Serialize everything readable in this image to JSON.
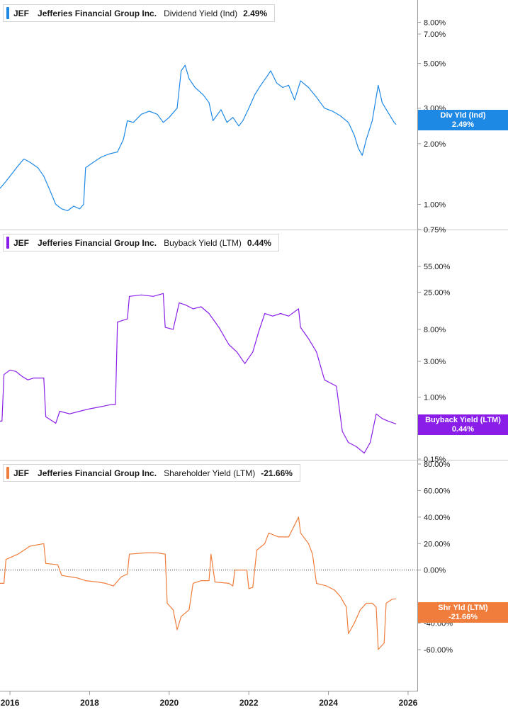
{
  "colors": {
    "dividend": "#1e88e5",
    "buyback": "#8a1ee8",
    "shareholder": "#f07d3c"
  },
  "legends": [
    {
      "ticker": "JEF",
      "company": "Jefferies Financial Group Inc.",
      "metric": "Dividend Yield (Ind)",
      "value": "2.49%"
    },
    {
      "ticker": "JEF",
      "company": "Jefferies Financial Group Inc.",
      "metric": "Buyback Yield (LTM)",
      "value": "0.44%"
    },
    {
      "ticker": "JEF",
      "company": "Jefferies Financial Group Inc.",
      "metric": "Shareholder Yield (LTM)",
      "value": "-21.66%"
    }
  ],
  "flags": [
    {
      "label": "Div Yld (Ind)",
      "value": "2.49%"
    },
    {
      "label": "Buyback Yield (LTM)",
      "value": "0.44%"
    },
    {
      "label": "Shr Yld (LTM)",
      "value": "-21.66%"
    }
  ],
  "chart_data": [
    {
      "type": "line",
      "series": [
        {
          "name": "Dividend Yield (Ind)",
          "color": "#1e88e5"
        }
      ],
      "yscale": "log",
      "ylim": [
        0.75,
        9
      ],
      "yticks": [
        "8.00%",
        "7.00%",
        "5.00%",
        "3.00%",
        "2.00%",
        "1.00%",
        "0.75%"
      ],
      "xlim": [
        2015.75,
        2026.25
      ],
      "points": [
        [
          2015.75,
          1.2
        ],
        [
          2015.9,
          1.3
        ],
        [
          2016.05,
          1.42
        ],
        [
          2016.2,
          1.55
        ],
        [
          2016.35,
          1.68
        ],
        [
          2016.5,
          1.62
        ],
        [
          2016.7,
          1.52
        ],
        [
          2016.85,
          1.38
        ],
        [
          2017.0,
          1.18
        ],
        [
          2017.15,
          1.0
        ],
        [
          2017.3,
          0.95
        ],
        [
          2017.45,
          0.93
        ],
        [
          2017.6,
          0.98
        ],
        [
          2017.75,
          0.95
        ],
        [
          2017.85,
          1.0
        ],
        [
          2017.9,
          1.52
        ],
        [
          2018.1,
          1.62
        ],
        [
          2018.3,
          1.72
        ],
        [
          2018.5,
          1.78
        ],
        [
          2018.7,
          1.82
        ],
        [
          2018.85,
          2.1
        ],
        [
          2018.95,
          2.6
        ],
        [
          2019.1,
          2.55
        ],
        [
          2019.3,
          2.8
        ],
        [
          2019.5,
          2.9
        ],
        [
          2019.7,
          2.8
        ],
        [
          2019.85,
          2.55
        ],
        [
          2020.0,
          2.7
        ],
        [
          2020.2,
          3.0
        ],
        [
          2020.3,
          4.6
        ],
        [
          2020.4,
          4.9
        ],
        [
          2020.5,
          4.2
        ],
        [
          2020.65,
          3.8
        ],
        [
          2020.85,
          3.5
        ],
        [
          2021.0,
          3.2
        ],
        [
          2021.1,
          2.6
        ],
        [
          2021.3,
          2.95
        ],
        [
          2021.45,
          2.55
        ],
        [
          2021.6,
          2.7
        ],
        [
          2021.75,
          2.45
        ],
        [
          2021.85,
          2.6
        ],
        [
          2022.0,
          3.0
        ],
        [
          2022.15,
          3.5
        ],
        [
          2022.3,
          3.9
        ],
        [
          2022.45,
          4.3
        ],
        [
          2022.55,
          4.6
        ],
        [
          2022.7,
          4.0
        ],
        [
          2022.85,
          3.8
        ],
        [
          2023.0,
          3.9
        ],
        [
          2023.15,
          3.3
        ],
        [
          2023.3,
          4.1
        ],
        [
          2023.5,
          3.8
        ],
        [
          2023.7,
          3.4
        ],
        [
          2023.9,
          3.0
        ],
        [
          2024.1,
          2.9
        ],
        [
          2024.3,
          2.75
        ],
        [
          2024.5,
          2.55
        ],
        [
          2024.65,
          2.2
        ],
        [
          2024.75,
          1.9
        ],
        [
          2024.85,
          1.75
        ],
        [
          2024.95,
          2.1
        ],
        [
          2025.1,
          2.6
        ],
        [
          2025.25,
          3.9
        ],
        [
          2025.35,
          3.2
        ],
        [
          2025.5,
          2.85
        ],
        [
          2025.65,
          2.55
        ],
        [
          2025.7,
          2.49
        ]
      ]
    },
    {
      "type": "line",
      "series": [
        {
          "name": "Buyback Yield (LTM)",
          "color": "#8a1ee8"
        }
      ],
      "yscale": "log",
      "ylim": [
        0.15,
        70
      ],
      "yticks": [
        "55.00%",
        "25.00%",
        "8.00%",
        "3.00%",
        "1.00%",
        "0.15%"
      ],
      "xlim": [
        2015.75,
        2026.25
      ],
      "points": [
        [
          2015.75,
          0.48
        ],
        [
          2015.8,
          0.48
        ],
        [
          2015.85,
          2.0
        ],
        [
          2016.0,
          2.3
        ],
        [
          2016.15,
          2.2
        ],
        [
          2016.3,
          1.9
        ],
        [
          2016.45,
          1.7
        ],
        [
          2016.6,
          1.8
        ],
        [
          2016.85,
          1.8
        ],
        [
          2016.9,
          0.55
        ],
        [
          2017.15,
          0.45
        ],
        [
          2017.25,
          0.65
        ],
        [
          2017.5,
          0.6
        ],
        [
          2017.75,
          0.65
        ],
        [
          2018.0,
          0.7
        ],
        [
          2018.3,
          0.75
        ],
        [
          2018.55,
          0.8
        ],
        [
          2018.65,
          0.8
        ],
        [
          2018.7,
          10.0
        ],
        [
          2018.95,
          11.0
        ],
        [
          2019.0,
          22.0
        ],
        [
          2019.3,
          23.0
        ],
        [
          2019.6,
          22.0
        ],
        [
          2019.85,
          24.0
        ],
        [
          2019.9,
          8.5
        ],
        [
          2020.1,
          8.0
        ],
        [
          2020.25,
          18.0
        ],
        [
          2020.4,
          17.0
        ],
        [
          2020.6,
          15.0
        ],
        [
          2020.8,
          16.0
        ],
        [
          2021.0,
          13.0
        ],
        [
          2021.25,
          8.5
        ],
        [
          2021.5,
          5.0
        ],
        [
          2021.7,
          4.0
        ],
        [
          2021.9,
          2.8
        ],
        [
          2022.1,
          4.0
        ],
        [
          2022.25,
          7.5
        ],
        [
          2022.4,
          13.0
        ],
        [
          2022.6,
          12.0
        ],
        [
          2022.8,
          13.0
        ],
        [
          2023.0,
          12.0
        ],
        [
          2023.25,
          15.0
        ],
        [
          2023.3,
          8.5
        ],
        [
          2023.5,
          6.0
        ],
        [
          2023.7,
          4.0
        ],
        [
          2023.9,
          1.7
        ],
        [
          2024.2,
          1.4
        ],
        [
          2024.35,
          0.35
        ],
        [
          2024.5,
          0.25
        ],
        [
          2024.7,
          0.22
        ],
        [
          2024.9,
          0.18
        ],
        [
          2025.05,
          0.25
        ],
        [
          2025.2,
          0.6
        ],
        [
          2025.35,
          0.52
        ],
        [
          2025.5,
          0.48
        ],
        [
          2025.7,
          0.44
        ]
      ]
    },
    {
      "type": "line",
      "series": [
        {
          "name": "Shareholder Yield (LTM)",
          "color": "#f07d3c"
        }
      ],
      "yscale": "linear",
      "ylim": [
        -75,
        80
      ],
      "yticks": [
        "80.00%",
        "60.00%",
        "40.00%",
        "20.00%",
        "0.00%",
        "-40.00%",
        "-60.00%"
      ],
      "zero_line": "dotted",
      "xlim": [
        2015.75,
        2026.25
      ],
      "xticks": [
        "2016",
        "2018",
        "2020",
        "2022",
        "2024",
        "2026"
      ],
      "points": [
        [
          2015.75,
          -10
        ],
        [
          2015.85,
          -10
        ],
        [
          2015.9,
          8
        ],
        [
          2016.2,
          12
        ],
        [
          2016.5,
          18
        ],
        [
          2016.85,
          20
        ],
        [
          2016.9,
          5
        ],
        [
          2017.2,
          4
        ],
        [
          2017.3,
          -4
        ],
        [
          2017.7,
          -6
        ],
        [
          2017.9,
          -8
        ],
        [
          2018.2,
          -9
        ],
        [
          2018.4,
          -10
        ],
        [
          2018.6,
          -12
        ],
        [
          2018.8,
          -5
        ],
        [
          2018.95,
          -3
        ],
        [
          2019.0,
          12
        ],
        [
          2019.4,
          13
        ],
        [
          2019.7,
          13
        ],
        [
          2019.9,
          12
        ],
        [
          2019.95,
          -25
        ],
        [
          2020.1,
          -30
        ],
        [
          2020.2,
          -45
        ],
        [
          2020.3,
          -35
        ],
        [
          2020.5,
          -30
        ],
        [
          2020.6,
          -10
        ],
        [
          2020.8,
          -8
        ],
        [
          2021.0,
          -8
        ],
        [
          2021.05,
          12
        ],
        [
          2021.15,
          -9
        ],
        [
          2021.5,
          -10
        ],
        [
          2021.6,
          -12
        ],
        [
          2021.65,
          0
        ],
        [
          2021.95,
          0
        ],
        [
          2022.0,
          -14
        ],
        [
          2022.1,
          -13
        ],
        [
          2022.2,
          15
        ],
        [
          2022.4,
          20
        ],
        [
          2022.5,
          28
        ],
        [
          2022.75,
          25
        ],
        [
          2023.0,
          25
        ],
        [
          2023.25,
          40
        ],
        [
          2023.3,
          28
        ],
        [
          2023.5,
          20
        ],
        [
          2023.6,
          12
        ],
        [
          2023.7,
          -10
        ],
        [
          2023.95,
          -12
        ],
        [
          2024.15,
          -15
        ],
        [
          2024.3,
          -20
        ],
        [
          2024.45,
          -28
        ],
        [
          2024.5,
          -48
        ],
        [
          2024.65,
          -40
        ],
        [
          2024.8,
          -30
        ],
        [
          2024.95,
          -25
        ],
        [
          2025.1,
          -25
        ],
        [
          2025.2,
          -28
        ],
        [
          2025.25,
          -60
        ],
        [
          2025.4,
          -55
        ],
        [
          2025.45,
          -25
        ],
        [
          2025.6,
          -22
        ],
        [
          2025.7,
          -21.66
        ]
      ]
    }
  ]
}
